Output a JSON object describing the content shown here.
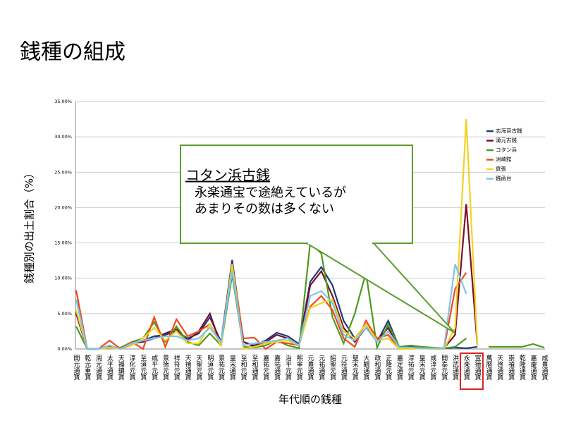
{
  "title": "銭種の組成",
  "chart_data": {
    "type": "line",
    "ylabel": "銭種別の出土割合（%）",
    "xlabel": "年代順の銭種",
    "categories": [
      "開元通寳",
      "乾元重寳",
      "周元通寳",
      "太平通寳",
      "天福鎮寳",
      "淳化元寳",
      "至道元寳",
      "咸平元寳",
      "景徳元寳",
      "祥符元寳",
      "天禧通寳",
      "天聖元寳",
      "明道元寳",
      "景祐元寳",
      "皇宋通寳",
      "至和元寳",
      "至和通寳",
      "嘉祐元寳",
      "嘉祐通寳",
      "治平元寳",
      "熙寧元寳",
      "元豊通寳",
      "元祐通寳",
      "紹聖元寳",
      "元符通寳",
      "聖宋元寳",
      "大観通寳",
      "政和通寳",
      "正隆元寳",
      "嘉定通寳",
      "淳祐元寳",
      "皇宋元寳",
      "咸淳元寳",
      "開泰元寳",
      "洪武通寳",
      "永楽通寳",
      "宣徳通寳",
      "萬暦通寳",
      "天啓通寳",
      "崇禎通寳",
      "乾隆通寳",
      "嘉慶通寳",
      "咸豊通寳"
    ],
    "ylim": [
      0,
      35
    ],
    "yticks": [
      {
        "value": 0,
        "label": "0.00%"
      },
      {
        "value": 5,
        "label": "5.00%"
      },
      {
        "value": 10,
        "label": "10.00%"
      },
      {
        "value": 15,
        "label": "15.00%"
      },
      {
        "value": 20,
        "label": "20.00%"
      },
      {
        "value": 25,
        "label": "25.00%"
      },
      {
        "value": 30,
        "label": "30.00%"
      },
      {
        "value": 35,
        "label": "35.00%"
      }
    ],
    "grid": true,
    "series": [
      {
        "name": "志海苔古銭",
        "color": "#1f3b7a",
        "values": [
          5.2,
          0,
          0,
          0.5,
          0,
          0.8,
          1.2,
          1.8,
          2.0,
          2.5,
          1.5,
          2.2,
          4.5,
          1.0,
          12.6,
          1.0,
          0.5,
          1.2,
          2.3,
          1.8,
          0.7,
          9.5,
          11.6,
          9.0,
          4.0,
          1.5,
          3.5,
          1.0,
          4.0,
          0.2,
          0.3,
          0.2,
          0.1,
          0.1,
          0.2,
          0.1,
          0.3,
          null,
          null,
          null,
          null,
          null,
          null
        ]
      },
      {
        "name": "湧元古銭",
        "color": "#7a0f2a",
        "values": [
          5,
          0,
          0,
          0.3,
          0,
          0.8,
          1.0,
          1.5,
          2.2,
          2.8,
          1.2,
          2.5,
          5.0,
          0.5,
          12.0,
          1.0,
          0.3,
          1.0,
          2.0,
          1.5,
          0.5,
          9.0,
          11.0,
          7.5,
          3.0,
          1.0,
          3.0,
          1.2,
          3.0,
          0.1,
          0.2,
          0.1,
          0.1,
          0.1,
          2.0,
          20.5,
          0.5,
          null,
          null,
          null,
          null,
          null,
          null
        ]
      },
      {
        "name": "コタン浜",
        "color": "#4e9a1e",
        "values": [
          3.2,
          0,
          0,
          0.2,
          0.2,
          1.0,
          1.5,
          3.8,
          1.0,
          3.2,
          1.0,
          0.5,
          2.2,
          0.5,
          10.5,
          0.3,
          0.2,
          0.5,
          1.2,
          0.5,
          0.1,
          15.0,
          13.5,
          4.5,
          0.8,
          5.0,
          10.8,
          0.2,
          3.5,
          0.3,
          0.5,
          0.3,
          0.2,
          0.1,
          0.3,
          1.5,
          null,
          0.3,
          0.3,
          0.3,
          0.3,
          0.7,
          0.2
        ]
      },
      {
        "name": "洲崎館",
        "color": "#f04a1a",
        "values": [
          8.3,
          0,
          0,
          1.2,
          0,
          1.0,
          0,
          4.5,
          0.3,
          4.2,
          1.8,
          2.5,
          3.5,
          0.8,
          12.0,
          1.5,
          1.6,
          0,
          1.0,
          0.8,
          0.5,
          6.0,
          7.5,
          5.5,
          1.5,
          0.3,
          4.0,
          1.5,
          2.0,
          0,
          0.1,
          0.1,
          0,
          0,
          8.5,
          10.8,
          null,
          null,
          null,
          null,
          null,
          null,
          null
        ]
      },
      {
        "name": "貢張",
        "color": "#f5d21f",
        "values": [
          5.5,
          0,
          0,
          0.2,
          0,
          0.5,
          1.5,
          3.0,
          1.2,
          2.5,
          0.8,
          0.8,
          3.5,
          0.5,
          12.0,
          0,
          0.3,
          0.8,
          1.0,
          1.2,
          0.5,
          5.8,
          6.5,
          7.0,
          2.5,
          1.5,
          3.5,
          1.2,
          1.5,
          0,
          0,
          0.1,
          0,
          0,
          3.0,
          32.5,
          0.5,
          null,
          null,
          null,
          null,
          null,
          null
        ]
      },
      {
        "name": "銭函台",
        "color": "#7cc4ee",
        "values": [
          7,
          0,
          0,
          0.5,
          0,
          0.8,
          1.2,
          1.5,
          1.8,
          1.8,
          1.2,
          1.5,
          3.0,
          1.0,
          11.0,
          0.5,
          0.8,
          1.0,
          1.2,
          1.5,
          0.5,
          7.5,
          8.2,
          6.5,
          2.0,
          1.2,
          3.0,
          1.0,
          2.5,
          0.2,
          0.2,
          0.1,
          0.1,
          0.1,
          12.0,
          7.8,
          null,
          null,
          null,
          null,
          null,
          null,
          null
        ]
      }
    ],
    "annotation": {
      "title": "コタン浜古銭",
      "lines": [
        "永楽通宝で途絶えているが",
        "あまりその数は多くない"
      ]
    }
  }
}
